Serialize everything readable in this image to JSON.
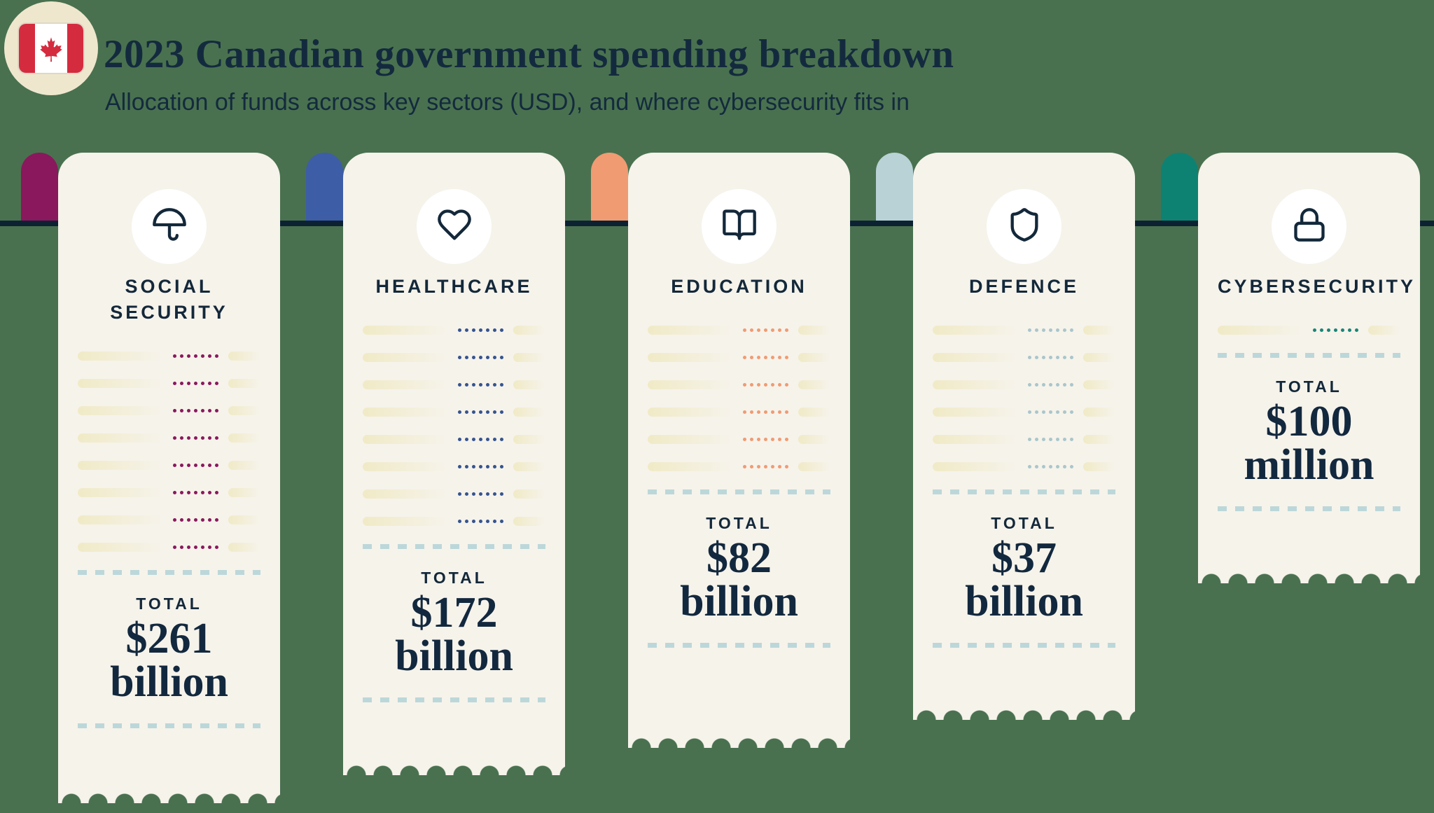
{
  "header": {
    "badge_icon": "canada-flag-icon",
    "title": "2023 Canadian government spending breakdown",
    "subtitle": "Allocation of funds across key sectors (USD), and where cybersecurity fits in"
  },
  "colors": {
    "background": "#49714F",
    "ink": "#132A3E",
    "receipt_paper": "#F6F3EB",
    "baseline": "#0C2233",
    "separator_dash": "#BCD7D9",
    "bar_fill": "#F0EAC6",
    "badge_circle": "#EFE7CD",
    "flag_red": "#D52B3F"
  },
  "cards": [
    {
      "sector": "Social Security",
      "label": "SOCIAL\nSECURITY",
      "icon": "umbrella-icon",
      "tab_color": "#8A185C",
      "dot_color": "#8A185C",
      "total_label": "TOTAL",
      "amount": "$261",
      "amount_unit": "billion",
      "line_items": 8,
      "receipt_length": 929
    },
    {
      "sector": "Healthcare",
      "label": "HEALTHCARE",
      "icon": "heart-icon",
      "tab_color": "#3D5DA7",
      "dot_color": "#35548F",
      "total_label": "TOTAL",
      "amount": "$172",
      "amount_unit": "billion",
      "line_items": 8,
      "receipt_length": 889
    },
    {
      "sector": "Education",
      "label": "EDUCATION",
      "icon": "open-book-icon",
      "tab_color": "#F09B72",
      "dot_color": "#F09B72",
      "total_label": "TOTAL",
      "amount": "$82",
      "amount_unit": "billion",
      "line_items": 6,
      "receipt_length": 850
    },
    {
      "sector": "Defence",
      "label": "DEFENCE",
      "icon": "shield-icon",
      "tab_color": "#B9D2D6",
      "dot_color": "#A9C6CB",
      "total_label": "TOTAL",
      "amount": "$37",
      "amount_unit": "billion",
      "line_items": 6,
      "receipt_length": 810
    },
    {
      "sector": "Cybersecurity",
      "label": "CYBERSECURITY",
      "icon": "lock-icon",
      "tab_color": "#0D8273",
      "dot_color": "#188577",
      "total_label": "TOTAL",
      "amount": "$100",
      "amount_unit": "million",
      "line_items": 1,
      "receipt_length": 615
    }
  ],
  "chart_data": {
    "type": "bar",
    "title": "2023 Canadian government spending breakdown",
    "subtitle": "Allocation of funds across key sectors (USD), and where cybersecurity fits in",
    "categories": [
      "Social Security",
      "Healthcare",
      "Education",
      "Defence",
      "Cybersecurity"
    ],
    "values": [
      261,
      172,
      82,
      37,
      0.1
    ],
    "unit": "USD billions",
    "value_labels": [
      "$261 billion",
      "$172 billion",
      "$82 billion",
      "$37 billion",
      "$100 million"
    ],
    "legend": "off",
    "grid": "off",
    "encoding": "receipt length represents spending amount"
  }
}
